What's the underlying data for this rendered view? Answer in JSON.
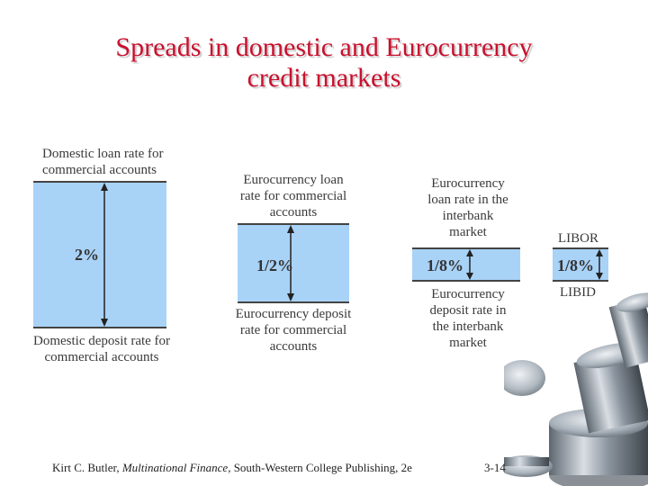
{
  "title": {
    "line1": "Spreads in domestic and Eurocurrency",
    "line2": "credit markets"
  },
  "domestic": {
    "top": [
      "Domestic loan rate for",
      "commercial accounts"
    ],
    "spread": "2%",
    "bottom": [
      "Domestic deposit rate for",
      "commercial accounts"
    ]
  },
  "euro_commercial": {
    "top": [
      "Eurocurrency loan",
      "rate for commercial",
      "accounts"
    ],
    "spread": "1/2%",
    "bottom": [
      "Eurocurrency deposit",
      "rate for commercial",
      "accounts"
    ]
  },
  "euro_interbank": {
    "top": [
      "Eurocurrency",
      "loan rate in the",
      "interbank",
      "market"
    ],
    "spread": "1/8%",
    "bottom": [
      "Eurocurrency",
      "deposit rate in",
      "the interbank",
      "market"
    ]
  },
  "libor": {
    "top": "LIBOR",
    "spread": "1/8%",
    "bottom": "LIBID"
  },
  "footer": {
    "author": "Kirt C. Butler, ",
    "book": "Multinational Finance",
    "publisher": ", South-Western College Publishing, 2e",
    "page": "3-14"
  },
  "colors": {
    "title": "#c8102e",
    "box_fill": "#a9d2f7"
  }
}
